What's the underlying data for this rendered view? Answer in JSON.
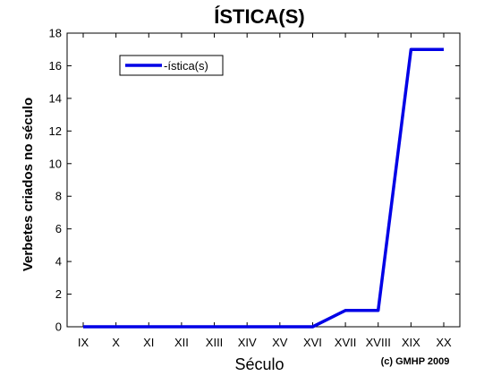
{
  "chart_data": {
    "type": "line",
    "title": "ÍSTICA(S)",
    "xlabel": "Século",
    "ylabel": "Verbetes criados no século",
    "categories": [
      "IX",
      "X",
      "XI",
      "XII",
      "XIII",
      "XIV",
      "XV",
      "XVI",
      "XVII",
      "XVIII",
      "XIX",
      "XX"
    ],
    "series": [
      {
        "name": "-ística(s)",
        "values": [
          0,
          0,
          0,
          0,
          0,
          0,
          0,
          0,
          1,
          1,
          17,
          17
        ],
        "color": "#0000e6"
      }
    ],
    "ylim": [
      0,
      18
    ],
    "yticks": [
      0,
      2,
      4,
      6,
      8,
      10,
      12,
      14,
      16,
      18
    ],
    "grid": false,
    "legend_position": "top-left",
    "annotation": "(c) GMHP 2009"
  }
}
